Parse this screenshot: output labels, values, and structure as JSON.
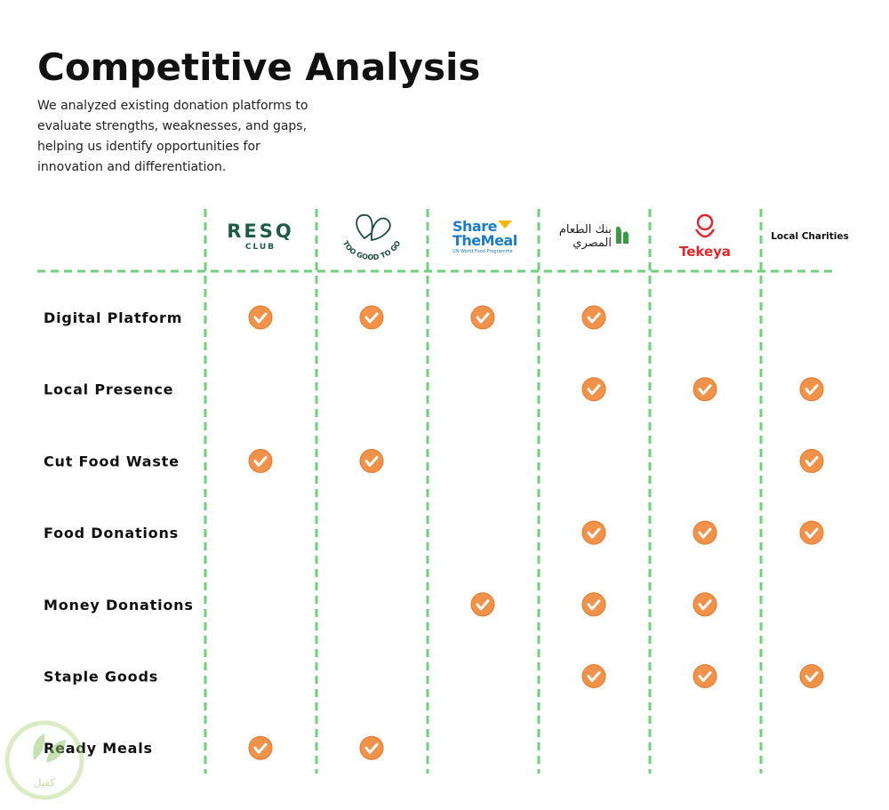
{
  "header": {
    "title": "Competitive Analysis",
    "description": [
      "We analyzed existing donation platforms to",
      "evaluate strengths, weaknesses, and gaps,",
      "helping us identify opportunities for",
      "innovation and differentiation."
    ]
  },
  "columns": [
    {
      "name": "RESQ",
      "sub": "CLUB"
    },
    {
      "name": "TOO GOOD TO GO"
    },
    {
      "name": "Share",
      "sub": "TheMeal",
      "note": "UN World Food Programme"
    },
    {
      "name": "بنك الطعام",
      "sub": "المصري"
    },
    {
      "name": "Tekeya"
    },
    {
      "name": "Local Charities"
    }
  ],
  "rows": [
    {
      "label": "Digital Platform",
      "checks": [
        true,
        true,
        true,
        true,
        false,
        false
      ]
    },
    {
      "label": "Local Presence",
      "checks": [
        false,
        false,
        false,
        true,
        true,
        true
      ]
    },
    {
      "label": "Cut Food Waste",
      "checks": [
        true,
        true,
        false,
        false,
        false,
        true
      ]
    },
    {
      "label": "Food Donations",
      "checks": [
        false,
        false,
        false,
        true,
        true,
        true
      ]
    },
    {
      "label": "Money Donations",
      "checks": [
        false,
        false,
        true,
        true,
        true,
        false
      ]
    },
    {
      "label": "Staple Goods",
      "checks": [
        false,
        false,
        false,
        true,
        true,
        true
      ]
    },
    {
      "label": "Ready Meals",
      "checks": [
        true,
        true,
        false,
        false,
        false,
        false
      ]
    }
  ],
  "watermark": "كفيل"
}
